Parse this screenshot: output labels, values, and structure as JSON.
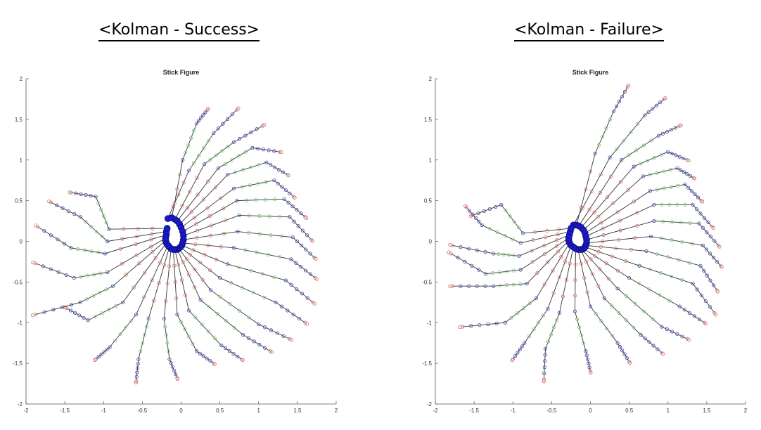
{
  "headings": {
    "left": "<Kolman - Success>",
    "right": "<Kolman - Failure>"
  },
  "colors": {
    "link": "#333333",
    "proximal": "#cc7070",
    "middle": "#77cc77",
    "distal": "#4444aa",
    "hub": "#1a1acc"
  },
  "chart_data": [
    {
      "type": "scatter",
      "title": "Stick Figure",
      "xlabel": "",
      "ylabel": "",
      "xlim": [
        -2,
        2
      ],
      "ylim": [
        -2,
        2
      ],
      "xticks": [
        -2,
        -1.5,
        -1,
        -0.5,
        0,
        0.5,
        1,
        1.5,
        2
      ],
      "yticks": [
        -2,
        -1.5,
        -1,
        -0.5,
        0,
        0.5,
        1,
        1.5,
        2
      ],
      "xtick_labels": [
        "-2",
        "-1.5",
        "-1",
        "-0.5",
        "0",
        "0.5",
        "1",
        "1.5",
        "2"
      ],
      "ytick_labels": [
        "-2",
        "-1.5",
        "-1",
        "-0.5",
        "0",
        "0.5",
        "1",
        "1.5",
        "2"
      ],
      "grid": false,
      "figures": [
        [
          [
            -0.17,
            0.28
          ],
          [
            0.1,
            0.87
          ],
          [
            0.42,
            1.33
          ],
          [
            0.72,
            1.62
          ]
        ],
        [
          [
            -0.12,
            0.29
          ],
          [
            0.02,
            1.0
          ],
          [
            0.2,
            1.45
          ],
          [
            0.34,
            1.62
          ]
        ],
        [
          [
            -0.08,
            0.27
          ],
          [
            0.3,
            0.95
          ],
          [
            0.68,
            1.22
          ],
          [
            1.05,
            1.42
          ]
        ],
        [
          [
            -0.05,
            0.25
          ],
          [
            0.48,
            0.9
          ],
          [
            0.92,
            1.15
          ],
          [
            1.27,
            1.1
          ]
        ],
        [
          [
            -0.02,
            0.21
          ],
          [
            0.6,
            0.82
          ],
          [
            1.1,
            0.97
          ],
          [
            1.37,
            0.82
          ]
        ],
        [
          [
            0.0,
            0.17
          ],
          [
            0.68,
            0.65
          ],
          [
            1.2,
            0.75
          ],
          [
            1.45,
            0.55
          ]
        ],
        [
          [
            0.02,
            0.12
          ],
          [
            0.72,
            0.5
          ],
          [
            1.33,
            0.52
          ],
          [
            1.6,
            0.3
          ]
        ],
        [
          [
            0.03,
            0.07
          ],
          [
            0.75,
            0.32
          ],
          [
            1.4,
            0.3
          ],
          [
            1.68,
            0.02
          ]
        ],
        [
          [
            0.03,
            0.02
          ],
          [
            0.73,
            0.12
          ],
          [
            1.44,
            0.05
          ],
          [
            1.72,
            -0.2
          ]
        ],
        [
          [
            0.02,
            -0.02
          ],
          [
            0.68,
            -0.08
          ],
          [
            1.42,
            -0.22
          ],
          [
            1.73,
            -0.45
          ]
        ],
        [
          [
            0.01,
            -0.05
          ],
          [
            0.6,
            -0.28
          ],
          [
            1.35,
            -0.48
          ],
          [
            1.7,
            -0.75
          ]
        ],
        [
          [
            -0.01,
            -0.07
          ],
          [
            0.5,
            -0.45
          ],
          [
            1.22,
            -0.75
          ],
          [
            1.6,
            -1.0
          ]
        ],
        [
          [
            -0.03,
            -0.09
          ],
          [
            0.38,
            -0.6
          ],
          [
            1.0,
            -1.02
          ],
          [
            1.4,
            -1.2
          ]
        ],
        [
          [
            -0.05,
            -0.1
          ],
          [
            0.25,
            -0.72
          ],
          [
            0.8,
            -1.15
          ],
          [
            1.15,
            -1.35
          ]
        ],
        [
          [
            -0.08,
            -0.1
          ],
          [
            0.1,
            -0.85
          ],
          [
            0.52,
            -1.28
          ],
          [
            0.78,
            -1.45
          ]
        ],
        [
          [
            -0.1,
            -0.1
          ],
          [
            -0.05,
            -0.9
          ],
          [
            0.2,
            -1.35
          ],
          [
            0.42,
            -1.5
          ]
        ],
        [
          [
            -0.13,
            -0.09
          ],
          [
            -0.22,
            -0.95
          ],
          [
            -0.15,
            -1.45
          ],
          [
            -0.05,
            -1.68
          ]
        ],
        [
          [
            -0.15,
            -0.07
          ],
          [
            -0.42,
            -0.95
          ],
          [
            -0.55,
            -1.45
          ],
          [
            -0.58,
            -1.72
          ]
        ],
        [
          [
            -0.17,
            -0.05
          ],
          [
            -0.58,
            -0.9
          ],
          [
            -0.92,
            -1.3
          ],
          [
            -1.1,
            -1.45
          ]
        ],
        [
          [
            -0.19,
            -0.02
          ],
          [
            -0.75,
            -0.75
          ],
          [
            -1.2,
            -0.97
          ],
          [
            -1.48,
            -0.82
          ]
        ],
        [
          [
            -0.2,
            0.01
          ],
          [
            -0.88,
            -0.55
          ],
          [
            -1.3,
            -0.75
          ],
          [
            -1.88,
            -0.9
          ]
        ],
        [
          [
            -0.2,
            0.04
          ],
          [
            -0.95,
            -0.38
          ],
          [
            -1.38,
            -0.45
          ],
          [
            -1.88,
            -0.27
          ]
        ],
        [
          [
            -0.19,
            0.08
          ],
          [
            -0.98,
            -0.15
          ],
          [
            -1.42,
            -0.08
          ],
          [
            -1.85,
            0.18
          ]
        ],
        [
          [
            -0.19,
            0.12
          ],
          [
            -0.95,
            0.0
          ],
          [
            -1.3,
            0.3
          ],
          [
            -1.68,
            0.48
          ]
        ],
        [
          [
            -0.18,
            0.16
          ],
          [
            -0.93,
            0.15
          ],
          [
            -1.1,
            0.55
          ],
          [
            -1.42,
            0.6
          ]
        ]
      ]
    },
    {
      "type": "scatter",
      "title": "Stick Figure",
      "xlabel": "",
      "ylabel": "",
      "xlim": [
        -2,
        2
      ],
      "ylim": [
        -2,
        2
      ],
      "xticks": [
        -2,
        -1.5,
        -1,
        -0.5,
        0,
        0.5,
        1,
        1.5,
        2
      ],
      "yticks": [
        -2,
        -1.5,
        -1,
        -0.5,
        0,
        0.5,
        1,
        1.5,
        2
      ],
      "xtick_labels": [
        "-2",
        "-1.5",
        "-1",
        "-0.5",
        "0",
        "0.5",
        "1",
        "1.5",
        "2"
      ],
      "ytick_labels": [
        "-2",
        "-1.5",
        "-1",
        "-0.5",
        "0",
        "0.5",
        "1",
        "1.5",
        "2"
      ],
      "grid": false,
      "figures": [
        [
          [
            -0.22,
            0.2
          ],
          [
            0.25,
            1.03
          ],
          [
            0.7,
            1.55
          ],
          [
            0.95,
            1.75
          ]
        ],
        [
          [
            -0.18,
            0.2
          ],
          [
            0.06,
            1.08
          ],
          [
            0.3,
            1.6
          ],
          [
            0.48,
            1.9
          ]
        ],
        [
          [
            -0.15,
            0.19
          ],
          [
            0.4,
            1.0
          ],
          [
            0.88,
            1.3
          ],
          [
            1.15,
            1.42
          ]
        ],
        [
          [
            -0.12,
            0.17
          ],
          [
            0.56,
            0.92
          ],
          [
            1.0,
            1.1
          ],
          [
            1.25,
            1.0
          ]
        ],
        [
          [
            -0.09,
            0.14
          ],
          [
            0.68,
            0.8
          ],
          [
            1.12,
            0.9
          ],
          [
            1.33,
            0.78
          ]
        ],
        [
          [
            -0.07,
            0.1
          ],
          [
            0.77,
            0.62
          ],
          [
            1.22,
            0.7
          ],
          [
            1.43,
            0.5
          ]
        ],
        [
          [
            -0.06,
            0.06
          ],
          [
            0.82,
            0.45
          ],
          [
            1.32,
            0.45
          ],
          [
            1.57,
            0.18
          ]
        ],
        [
          [
            -0.05,
            0.02
          ],
          [
            0.82,
            0.25
          ],
          [
            1.4,
            0.22
          ],
          [
            1.65,
            -0.05
          ]
        ],
        [
          [
            -0.05,
            -0.02
          ],
          [
            0.78,
            0.06
          ],
          [
            1.45,
            -0.05
          ],
          [
            1.68,
            -0.3
          ]
        ],
        [
          [
            -0.06,
            -0.05
          ],
          [
            0.72,
            -0.12
          ],
          [
            1.42,
            -0.3
          ],
          [
            1.63,
            -0.6
          ]
        ],
        [
          [
            -0.07,
            -0.07
          ],
          [
            0.63,
            -0.3
          ],
          [
            1.32,
            -0.52
          ],
          [
            1.6,
            -0.88
          ]
        ],
        [
          [
            -0.09,
            -0.09
          ],
          [
            0.5,
            -0.45
          ],
          [
            1.15,
            -0.8
          ],
          [
            1.47,
            -1.0
          ]
        ],
        [
          [
            -0.11,
            -0.1
          ],
          [
            0.35,
            -0.58
          ],
          [
            0.92,
            -1.05
          ],
          [
            1.25,
            -1.2
          ]
        ],
        [
          [
            -0.13,
            -0.1
          ],
          [
            0.18,
            -0.7
          ],
          [
            0.65,
            -1.15
          ],
          [
            0.92,
            -1.37
          ]
        ],
        [
          [
            -0.16,
            -0.1
          ],
          [
            0.0,
            -0.8
          ],
          [
            0.35,
            -1.25
          ],
          [
            0.5,
            -1.48
          ]
        ],
        [
          [
            -0.19,
            -0.09
          ],
          [
            -0.2,
            -0.86
          ],
          [
            -0.06,
            -1.35
          ],
          [
            0.0,
            -1.6
          ]
        ],
        [
          [
            -0.22,
            -0.07
          ],
          [
            -0.4,
            -0.88
          ],
          [
            -0.58,
            -1.32
          ],
          [
            -0.6,
            -1.7
          ]
        ],
        [
          [
            -0.25,
            -0.05
          ],
          [
            -0.55,
            -0.83
          ],
          [
            -0.85,
            -1.25
          ],
          [
            -1.0,
            -1.45
          ]
        ],
        [
          [
            -0.27,
            -0.02
          ],
          [
            -0.7,
            -0.7
          ],
          [
            -1.1,
            -1.0
          ],
          [
            -1.65,
            -1.05
          ]
        ],
        [
          [
            -0.28,
            0.01
          ],
          [
            -0.82,
            -0.52
          ],
          [
            -1.25,
            -0.55
          ],
          [
            -1.78,
            -0.55
          ]
        ],
        [
          [
            -0.28,
            0.04
          ],
          [
            -0.9,
            -0.35
          ],
          [
            -1.35,
            -0.4
          ],
          [
            -1.8,
            -0.15
          ]
        ],
        [
          [
            -0.27,
            0.08
          ],
          [
            -0.92,
            -0.18
          ],
          [
            -1.25,
            -0.15
          ],
          [
            -1.78,
            -0.05
          ]
        ],
        [
          [
            -0.26,
            0.12
          ],
          [
            -0.9,
            -0.02
          ],
          [
            -1.4,
            0.2
          ],
          [
            -1.6,
            0.42
          ]
        ],
        [
          [
            -0.25,
            0.16
          ],
          [
            -0.87,
            0.1
          ],
          [
            -1.15,
            0.45
          ],
          [
            -1.52,
            0.32
          ]
        ]
      ]
    }
  ]
}
